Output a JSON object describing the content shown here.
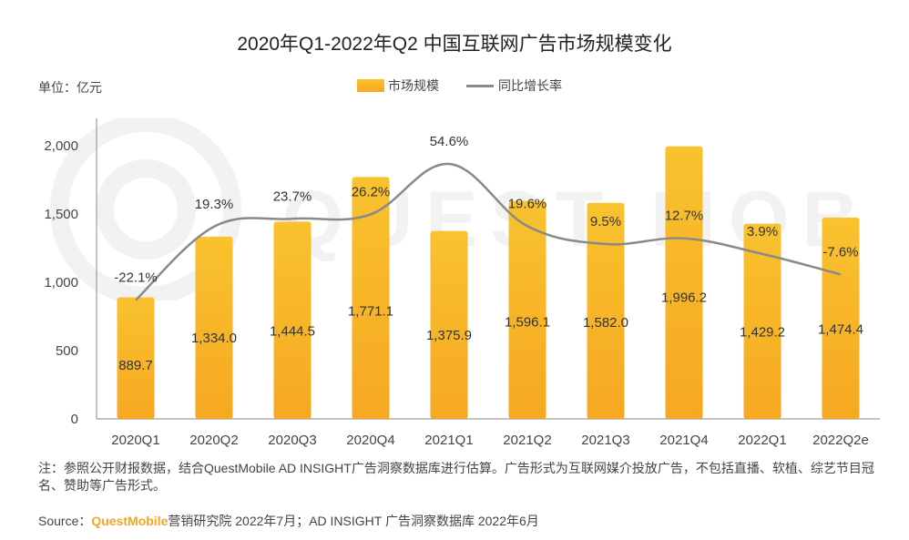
{
  "page": {
    "title": "2020年Q1-2022年Q2 中国互联网广告市场规模变化",
    "unit": "单位：亿元",
    "note": "注：参照公开财报数据，结合QuestMobile AD INSIGHT广告洞察数据库进行估算。广告形式为互联网媒介投放广告，不包括直播、软植、综艺节目冠名、赞助等广告形式。",
    "source_prefix": "Source：",
    "source_brand": "QuestMobile",
    "source_rest": "营销研究院 2022年7月；AD INSIGHT 广告洞察数据库 2022年6月",
    "watermark": "QUEST MOBILE"
  },
  "colors": {
    "bar_top": "#f9c22f",
    "bar_bottom": "#f6a821",
    "line": "#898989",
    "axis": "#888888"
  },
  "chart_data": {
    "type": "bar",
    "categories": [
      "2020Q1",
      "2020Q2",
      "2020Q3",
      "2020Q4",
      "2021Q1",
      "2021Q2",
      "2021Q3",
      "2021Q4",
      "2022Q1",
      "2022Q2e"
    ],
    "series": [
      {
        "name": "市场规模",
        "type": "bar",
        "values": [
          889.7,
          1334.0,
          1444.5,
          1771.1,
          1375.9,
          1596.1,
          1582.0,
          1996.2,
          1429.2,
          1474.4
        ],
        "labels": [
          "889.7",
          "1,334.0",
          "1,444.5",
          "1,771.1",
          "1,375.9",
          "1,596.1",
          "1,582.0",
          "1,996.2",
          "1,429.2",
          "1,474.4"
        ]
      },
      {
        "name": "同比增长率",
        "type": "line",
        "values": [
          -22.1,
          19.3,
          23.7,
          26.2,
          54.6,
          19.6,
          9.5,
          12.7,
          3.9,
          -7.6
        ],
        "labels": [
          "-22.1%",
          "19.3%",
          "23.7%",
          "26.2%",
          "54.6%",
          "19.6%",
          "9.5%",
          "12.7%",
          "3.9%",
          "-7.6%"
        ]
      }
    ],
    "yticks": [
      "0",
      "500",
      "1,000",
      "1,500",
      "2,000"
    ],
    "ytick_values": [
      0,
      500,
      1000,
      1500,
      2000
    ],
    "ylim": [
      0,
      2000
    ],
    "legend": [
      "市场规模",
      "同比增长率"
    ],
    "legend_position": "top-center"
  }
}
